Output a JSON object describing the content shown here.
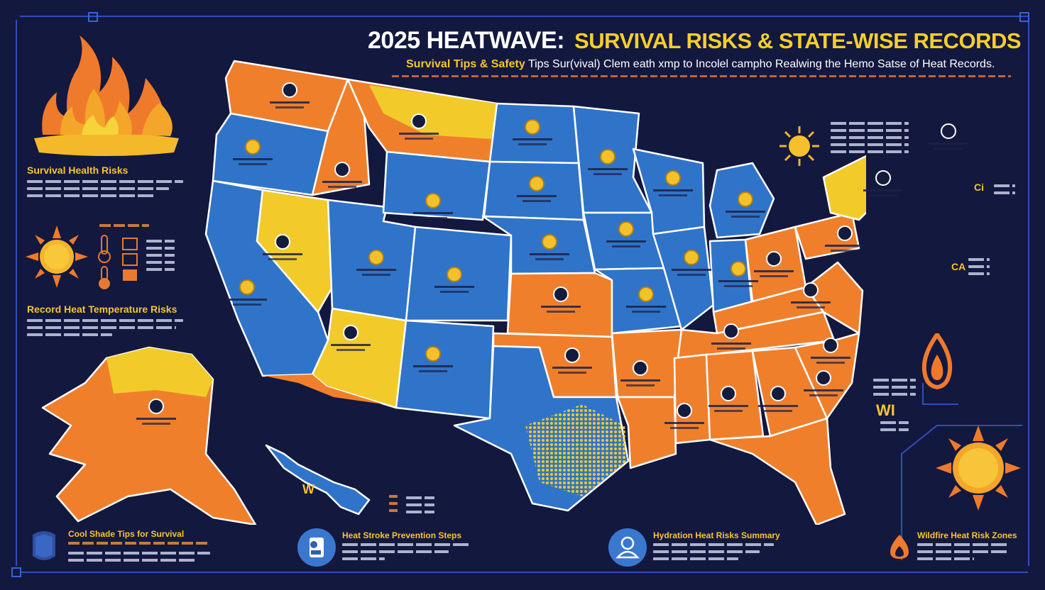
{
  "header": {
    "title_part1": "2025 HEATWAVE:",
    "title_part2": "SURVIVAL RISKS & STATE-WISE RECORDS",
    "subtitle_highlight": "Survival Tips & Safety",
    "subtitle_rest": "Tips Sur(vival) Clem eath xmp to Incolel campho Realwing the Hemo Satse of Heat Records."
  },
  "left_panels": {
    "health_risks_title": "Survival Health Risks",
    "temperature_title": "Record Heat Temperature Risks",
    "flame_icon": "flame-icon",
    "sun_icon": "sun-icon",
    "thermometer_icon": "thermometer-icon"
  },
  "bottom_sections": [
    {
      "title": "Cool Shade Tips for Survival",
      "icon": "water-drop-icon"
    },
    {
      "title": "Heat Stroke Prevention Steps",
      "icon": "person-icon"
    },
    {
      "title": "Hydration Heat Risks Summary",
      "icon": "helmet-icon"
    },
    {
      "title": "Wildfire Heat Risk Zones",
      "icon": "fire-icon"
    }
  ],
  "right_panel": {
    "sun_icon": "sun-icon",
    "flame_icon": "flame-icon",
    "label_wi": "WI",
    "label_ca": "CA",
    "label_ci": "Ci"
  },
  "map": {
    "legend_colors": {
      "extreme": "#f07f2c",
      "high": "#f2cb2b",
      "moderate": "#2f74c9"
    },
    "small_label": "W"
  }
}
